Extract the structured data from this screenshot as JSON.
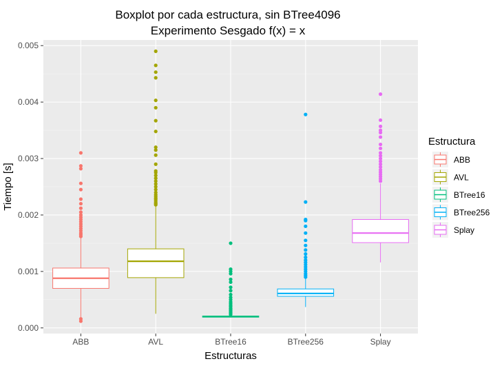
{
  "chart_data": {
    "type": "boxplot",
    "title": "Boxplot por cada estructura, sin BTree4096",
    "subtitle": "Experimento Sesgado f(x) = x",
    "xlabel": "Estructuras",
    "ylabel": "Tiempo [s]",
    "ylim": [
      -0.0001,
      0.0051
    ],
    "yticks": [
      "0.000",
      "0.001",
      "0.002",
      "0.003",
      "0.004",
      "0.005"
    ],
    "ytick_values": [
      0,
      0.001,
      0.002,
      0.003,
      0.004,
      0.005
    ],
    "grid": true,
    "legend": {
      "title": "Estructura",
      "position": "right"
    },
    "categories": [
      "ABB",
      "AVL",
      "BTree16",
      "BTree256",
      "Splay"
    ],
    "series": [
      {
        "name": "ABB",
        "color": "#F8766D",
        "whisker_low": 0.00015,
        "q1": 0.0007,
        "median": 0.00088,
        "q3": 0.00106,
        "whisker_high": 0.0016,
        "outliers": [
          0.00012,
          0.00016,
          0.00162,
          0.00165,
          0.00168,
          0.00172,
          0.00176,
          0.0018,
          0.00184,
          0.00188,
          0.00192,
          0.00196,
          0.002,
          0.00205,
          0.00212,
          0.0022,
          0.00228,
          0.00245,
          0.00256,
          0.00282,
          0.00287,
          0.0031
        ]
      },
      {
        "name": "AVL",
        "color": "#A3A500",
        "whisker_low": 0.00025,
        "q1": 0.00089,
        "median": 0.00118,
        "q3": 0.0014,
        "whisker_high": 0.00215,
        "outliers": [
          0.00218,
          0.0022,
          0.00222,
          0.00225,
          0.00228,
          0.0023,
          0.00233,
          0.00236,
          0.0024,
          0.00245,
          0.0025,
          0.00255,
          0.0026,
          0.00265,
          0.0027,
          0.00275,
          0.00278,
          0.0029,
          0.00306,
          0.00315,
          0.0032,
          0.00348,
          0.00367,
          0.0039,
          0.00403,
          0.00443,
          0.00453,
          0.00465,
          0.0049
        ]
      },
      {
        "name": "BTree16",
        "color": "#00BF7D",
        "whisker_low": 0.000185,
        "q1": 0.00019,
        "median": 0.0002,
        "q3": 0.00021,
        "whisker_high": 0.000225,
        "outliers": [
          0.000235,
          0.00025,
          0.00027,
          0.00029,
          0.00031,
          0.00033,
          0.00035,
          0.00038,
          0.0004,
          0.00043,
          0.00046,
          0.0005,
          0.00054,
          0.00059,
          0.00066,
          0.00072,
          0.00081,
          0.00086,
          0.00096,
          0.001,
          0.00104,
          0.0015
        ]
      },
      {
        "name": "BTree256",
        "color": "#00B0F6",
        "whisker_low": 0.00037,
        "q1": 0.00056,
        "median": 0.00061,
        "q3": 0.00069,
        "whisker_high": 0.00088,
        "outliers": [
          0.0009,
          0.00093,
          0.00096,
          0.001,
          0.00104,
          0.00108,
          0.00112,
          0.00116,
          0.0012,
          0.00125,
          0.00131,
          0.00138,
          0.00146,
          0.00155,
          0.00168,
          0.0018,
          0.0019,
          0.00192,
          0.00223,
          0.00378
        ]
      },
      {
        "name": "Splay",
        "color": "#E76BF3",
        "whisker_low": 0.00116,
        "q1": 0.00151,
        "median": 0.00168,
        "q3": 0.00192,
        "whisker_high": 0.00256,
        "outliers": [
          0.0026,
          0.00264,
          0.00268,
          0.00272,
          0.00276,
          0.0028,
          0.00285,
          0.0029,
          0.00295,
          0.003,
          0.00305,
          0.0031,
          0.00318,
          0.00325,
          0.00338,
          0.00346,
          0.0035,
          0.00357,
          0.00368,
          0.00414
        ]
      }
    ]
  }
}
